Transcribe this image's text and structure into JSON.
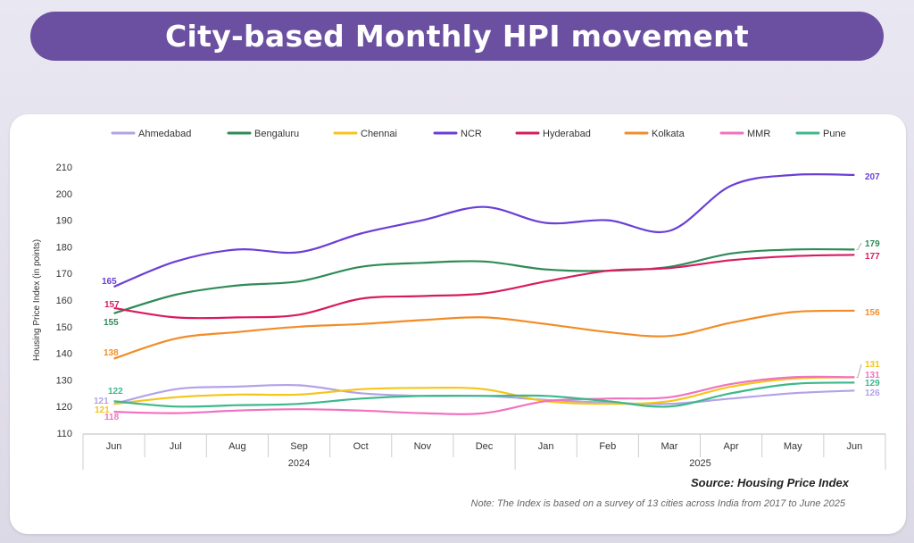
{
  "header": {
    "title": "City-based Monthly HPI movement"
  },
  "chart_data": {
    "type": "line",
    "title": "",
    "ylabel": "Housing Price Index (in points)",
    "xlabel": "",
    "ylim": [
      110,
      210
    ],
    "yticks": [
      110,
      120,
      130,
      140,
      150,
      160,
      170,
      180,
      190,
      200,
      210
    ],
    "categories": [
      "Jun",
      "Jul",
      "Aug",
      "Sep",
      "Oct",
      "Nov",
      "Dec",
      "Jan",
      "Feb",
      "Mar",
      "Apr",
      "May",
      "Jun"
    ],
    "year_groups": [
      {
        "label": "2024",
        "start": 0,
        "end": 6
      },
      {
        "label": "2025",
        "start": 7,
        "end": 12
      }
    ],
    "legend_position": "top",
    "grid": false,
    "series": [
      {
        "name": "Ahmedabad",
        "color": "#b3a2e6",
        "values": [
          121,
          126.5,
          127.5,
          128,
          125,
          124,
          124,
          122.5,
          121.5,
          121,
          123,
          125,
          126
        ],
        "start_label": "121",
        "end_label": "126"
      },
      {
        "name": "Bengaluru",
        "color": "#2e8b57",
        "values": [
          155,
          162,
          165.5,
          167,
          172.5,
          174,
          174.5,
          171.5,
          171,
          172.5,
          177.5,
          179,
          179
        ],
        "start_label": "155",
        "end_label": "179"
      },
      {
        "name": "Chennai",
        "color": "#f5c518",
        "values": [
          121,
          123.5,
          124.5,
          124.5,
          126.5,
          127,
          126.5,
          122,
          121,
          122,
          127.5,
          130.5,
          131
        ],
        "start_label": "121",
        "end_label": "131"
      },
      {
        "name": "NCR",
        "color": "#6a3fd6",
        "values": [
          165,
          174.5,
          179,
          178,
          185,
          190,
          195,
          189,
          190,
          186,
          203,
          207,
          207
        ],
        "start_label": "165",
        "end_label": "207"
      },
      {
        "name": "Hyderabad",
        "color": "#d81b60",
        "values": [
          157,
          153.5,
          153.5,
          154.5,
          160.5,
          161.5,
          162.5,
          167,
          171,
          172,
          175,
          176.5,
          177
        ],
        "start_label": "157",
        "end_label": "177"
      },
      {
        "name": "Kolkata",
        "color": "#f28c28",
        "values": [
          138,
          145.5,
          148,
          150,
          151,
          152.5,
          153.5,
          151,
          148,
          146.5,
          151.5,
          155.5,
          156
        ],
        "start_label": "138",
        "end_label": "156"
      },
      {
        "name": "MMR",
        "color": "#f072c0",
        "values": [
          118,
          117.5,
          118.5,
          119,
          118.5,
          117.5,
          117.5,
          122,
          123,
          123.5,
          128.5,
          131,
          131
        ],
        "start_label": "118",
        "end_label": "131"
      },
      {
        "name": "Pune",
        "color": "#3cb88a",
        "values": [
          122,
          120,
          120.5,
          121,
          123,
          124,
          124,
          124,
          122,
          120,
          125,
          128.5,
          129
        ],
        "start_label": "122",
        "end_label": "129"
      }
    ],
    "source": "Source: Housing Price Index",
    "note": "Note: The Index is based on a survey of 13 cities across India from 2017 to June 2025"
  }
}
